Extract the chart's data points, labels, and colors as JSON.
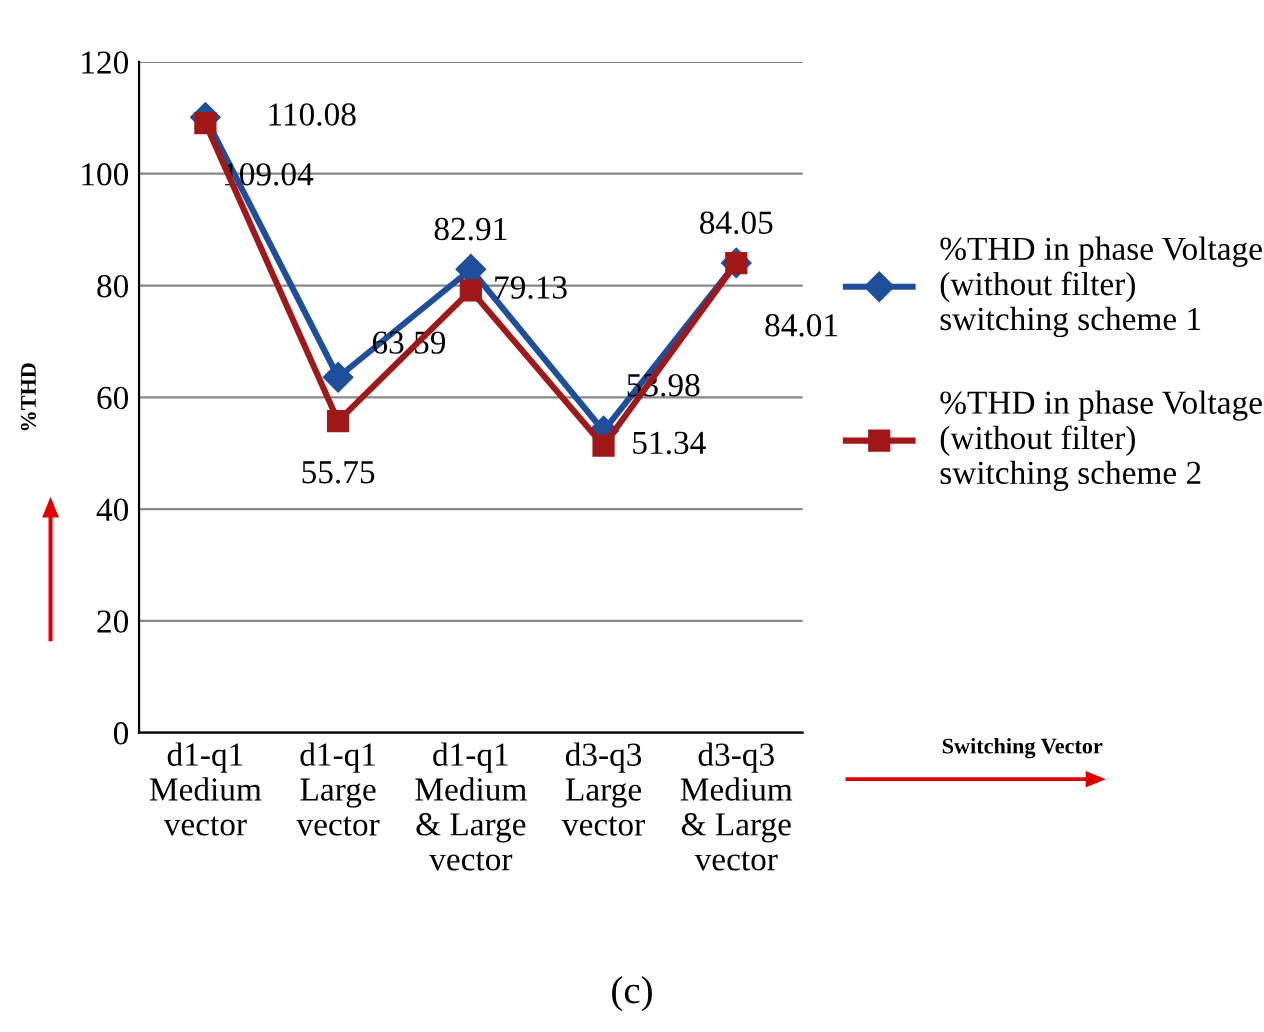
{
  "chart_data": {
    "type": "line",
    "categories": [
      "d1-q1\nMedium\nvector",
      "d1-q1\nLarge\nvector",
      "d1-q1\nMedium\n& Large\nvector",
      "d3-q3\nLarge\nvector",
      "d3-q3\nMedium\n& Large\nvector"
    ],
    "series": [
      {
        "name": "%THD in phase Voltage\n(without filter)\nswitching scheme 1",
        "color": "#1f4e9c",
        "marker": "diamond",
        "values": [
          110.08,
          63.59,
          82.91,
          53.98,
          84.05
        ]
      },
      {
        "name": "%THD in phase Voltage\n(without filter)\nswitching scheme 2",
        "color": "#a01818",
        "marker": "square",
        "values": [
          109.04,
          55.75,
          79.13,
          51.34,
          84.01
        ]
      }
    ],
    "ylim": [
      0,
      120
    ],
    "yticks": [
      0,
      20,
      40,
      60,
      80,
      100,
      120
    ],
    "grid": "y",
    "ylabel": "%THD",
    "data_labels": true,
    "legend": "right",
    "line_style": "solid",
    "annotations": [
      "Switching Vector",
      "(c)"
    ]
  }
}
